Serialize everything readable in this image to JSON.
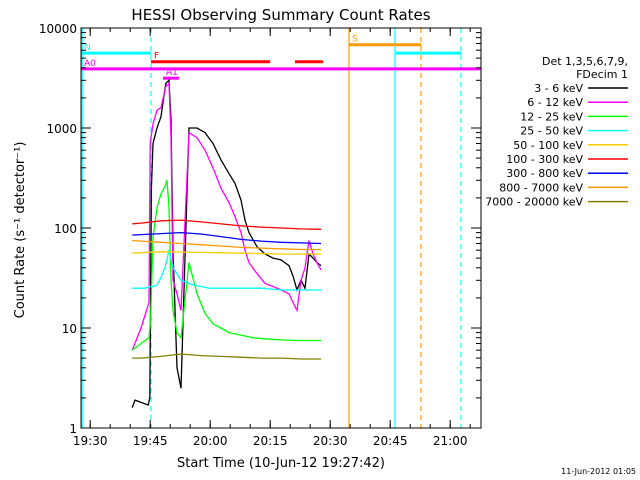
{
  "chart_data": {
    "type": "line",
    "title": "HESSI Observing Summary Count Rates",
    "xlabel": "Start Time (10-Jun-12 19:27:42)",
    "ylabel": "Count Rate (s⁻¹ detector⁻¹)",
    "x_unit": "minutes after 19:27:42 (10-Jun-2012)",
    "xlim": [
      0,
      100
    ],
    "ylim": [
      1,
      10000
    ],
    "yscale": "log",
    "x_ticks": [
      {
        "x": 2.3,
        "label": "19:30"
      },
      {
        "x": 17.3,
        "label": "19:45"
      },
      {
        "x": 32.3,
        "label": "20:00"
      },
      {
        "x": 47.3,
        "label": "20:15"
      },
      {
        "x": 62.3,
        "label": "20:30"
      },
      {
        "x": 77.3,
        "label": "20:45"
      },
      {
        "x": 92.3,
        "label": "21:00"
      }
    ],
    "y_ticks": [
      {
        "y": 1,
        "label": "1"
      },
      {
        "y": 10,
        "label": "10"
      },
      {
        "y": 100,
        "label": "100"
      },
      {
        "y": 1000,
        "label": "1000"
      },
      {
        "y": 10000,
        "label": "10000"
      }
    ],
    "legend": {
      "title_lines": [
        "Det 1,3,5,6,7,9,",
        "FDecim 1"
      ],
      "position": "right"
    },
    "series": [
      {
        "name": "3 - 6 keV",
        "color": "#000000",
        "x": [
          12.8,
          13.5,
          16.8,
          17.2,
          17.6,
          18,
          19,
          20,
          21.2,
          22,
          22.5,
          23,
          24,
          25,
          27,
          29,
          31,
          33,
          35,
          37,
          38.5,
          40,
          41,
          42,
          44,
          46,
          48,
          50,
          52,
          53,
          54,
          54.5,
          55,
          56,
          57,
          58,
          59,
          60
        ],
        "y": [
          1.6,
          1.9,
          1.7,
          2,
          250,
          700,
          1000,
          1300,
          2800,
          3000,
          1200,
          60,
          4,
          2.5,
          1000,
          1000,
          900,
          700,
          480,
          350,
          280,
          190,
          120,
          90,
          65,
          55,
          50,
          48,
          42,
          33,
          24,
          27,
          30,
          25,
          55,
          50,
          45,
          42
        ]
      },
      {
        "name": "6 - 12 keV",
        "color": "#ff00ff",
        "x": [
          12.8,
          15,
          17,
          17.3,
          18,
          19,
          20,
          21.2,
          22,
          22.5,
          23,
          24,
          25,
          27,
          29,
          31,
          33,
          35,
          37,
          38.5,
          40,
          41,
          42,
          44,
          46,
          48,
          50,
          52,
          53,
          54,
          55,
          56,
          57,
          58,
          59,
          60
        ],
        "y": [
          6,
          10,
          18,
          700,
          1100,
          1500,
          1600,
          2600,
          2800,
          800,
          30,
          22,
          15,
          900,
          800,
          600,
          400,
          250,
          180,
          130,
          90,
          60,
          45,
          35,
          28,
          26,
          24,
          22,
          18,
          15,
          30,
          40,
          75,
          55,
          45,
          38
        ]
      },
      {
        "name": "12 - 25 keV",
        "color": "#00ff00",
        "x": [
          12.8,
          15,
          17,
          17.4,
          18,
          19,
          20,
          21,
          21.5,
          22,
          22.5,
          23,
          24,
          25,
          27,
          29,
          31,
          33,
          35,
          37,
          40,
          43,
          46,
          50,
          54,
          57,
          60
        ],
        "y": [
          6,
          7,
          8,
          12,
          80,
          160,
          220,
          260,
          300,
          160,
          30,
          15,
          9,
          8,
          45,
          22,
          14,
          11,
          10,
          9,
          8.5,
          8,
          7.8,
          7.6,
          7.5,
          7.5,
          7.5
        ]
      },
      {
        "name": "25 - 50 keV",
        "color": "#00ffff",
        "x": [
          12.8,
          16,
          17.2,
          18,
          19,
          20,
          21,
          22,
          23,
          25,
          28,
          30,
          32,
          35,
          40,
          45,
          50,
          55,
          60
        ],
        "y": [
          25,
          25,
          26,
          26,
          27,
          32,
          40,
          60,
          40,
          30,
          27,
          26,
          25,
          25,
          25,
          25,
          24,
          24,
          24
        ]
      },
      {
        "name": "50 - 100 keV",
        "color": "#ffcc00",
        "x": [
          12.8,
          20,
          30,
          40,
          50,
          60
        ],
        "y": [
          56,
          58,
          57,
          56,
          55,
          55
        ]
      },
      {
        "name": "100 - 300 keV",
        "color": "#ff0000",
        "x": [
          12.8,
          15,
          20,
          25,
          30,
          35,
          40,
          45,
          50,
          55,
          60
        ],
        "y": [
          110,
          112,
          118,
          120,
          115,
          110,
          105,
          102,
          100,
          98,
          97
        ]
      },
      {
        "name": "300 - 800 keV",
        "color": "#0000ff",
        "x": [
          12.8,
          15,
          20,
          25,
          30,
          35,
          40,
          45,
          50,
          55,
          60
        ],
        "y": [
          85,
          86,
          88,
          90,
          87,
          82,
          77,
          74,
          72,
          71,
          70
        ]
      },
      {
        "name": "800 - 7000 keV",
        "color": "#ff9900",
        "x": [
          12.8,
          15,
          20,
          25,
          30,
          35,
          40,
          45,
          50,
          55,
          60
        ],
        "y": [
          75,
          74,
          72,
          70,
          68,
          66,
          64,
          63,
          62,
          61,
          61
        ]
      },
      {
        "name": "7000 - 20000 keV",
        "color": "#808000",
        "x": [
          12.8,
          15,
          20,
          25,
          30,
          35,
          40,
          45,
          50,
          55,
          60
        ],
        "y": [
          5,
          5,
          5.2,
          5.5,
          5.3,
          5.2,
          5.1,
          5,
          5,
          4.9,
          4.9
        ]
      }
    ],
    "flag_bars": [
      {
        "label": "N",
        "color": "#00ffff",
        "y": 5600,
        "segments": [
          [
            0,
            17.5
          ],
          [
            78.5,
            95
          ]
        ]
      },
      {
        "label": "S",
        "color": "#ff9900",
        "y": 6800,
        "segments": [
          [
            67,
            85
          ]
        ]
      },
      {
        "label": "F",
        "color": "#ff0000",
        "y": 4600,
        "segments": [
          [
            17.5,
            47.3
          ],
          [
            53.5,
            60.5
          ]
        ]
      },
      {
        "label": "A1",
        "color": "#ff00ff",
        "y": 3150,
        "segments": [
          [
            20.5,
            24.5
          ]
        ]
      },
      {
        "label": "A0",
        "color": "#ff00ff",
        "y": 3900,
        "segments": [
          [
            0,
            100
          ]
        ]
      }
    ],
    "vertical_lines": [
      {
        "x": 0.3,
        "color": "#00ffff",
        "style": "solid"
      },
      {
        "x": 17.5,
        "color": "#00ffff",
        "style": "dashed"
      },
      {
        "x": 67,
        "color": "#ff9900",
        "style": "solid"
      },
      {
        "x": 78.5,
        "color": "#00ffff",
        "style": "solid"
      },
      {
        "x": 85,
        "color": "#ff9900",
        "style": "dashed"
      },
      {
        "x": 95,
        "color": "#00ffff",
        "style": "dashed"
      }
    ],
    "grid": false
  },
  "footer": {
    "date_stamp": "11-Jun-2012 01:05"
  }
}
